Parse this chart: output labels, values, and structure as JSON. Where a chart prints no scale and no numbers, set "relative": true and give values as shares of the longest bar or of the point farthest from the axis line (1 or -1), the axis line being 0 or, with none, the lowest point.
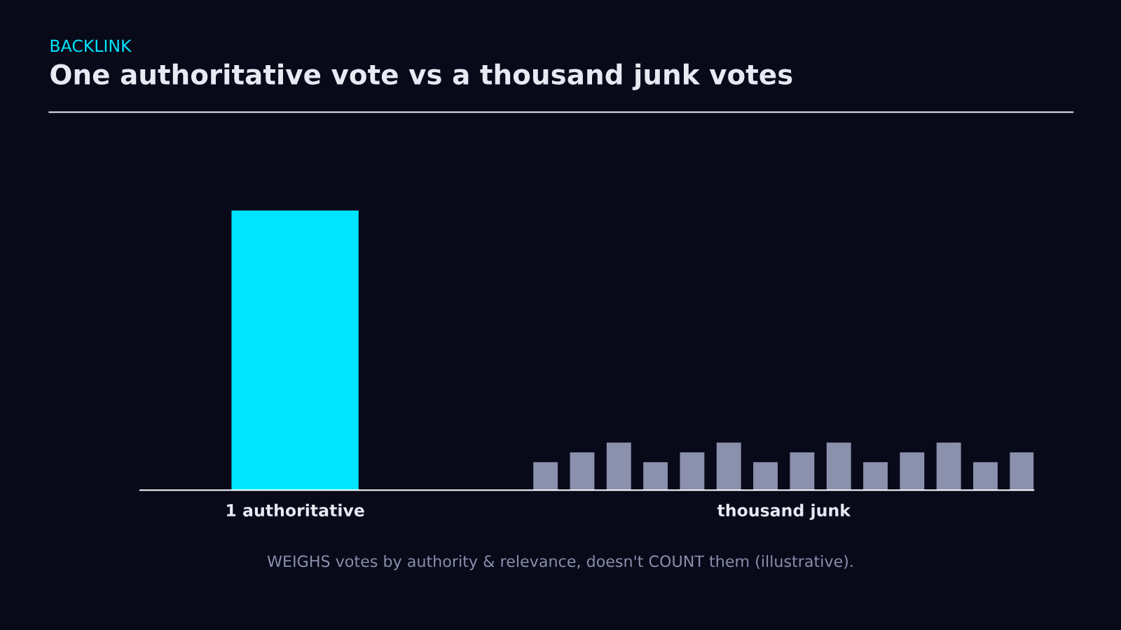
{
  "chart_data": {
    "type": "bar",
    "subtitle": "BACKLINK",
    "title": "One authoritative vote vs a thousand junk votes",
    "relative": true,
    "categories": [
      "1 authoritative",
      "thousand junk"
    ],
    "series": [
      {
        "color": "#00e5ff",
        "values": [
          1,
          null
        ]
      },
      {
        "color": "#8b90ad",
        "values": [
          null,
          0.1
        ]
      },
      {
        "color": "#8b90ad",
        "values": [
          null,
          0.135
        ]
      },
      {
        "color": "#8b90ad",
        "values": [
          null,
          0.17
        ]
      },
      {
        "color": "#8b90ad",
        "values": [
          null,
          0.1
        ]
      },
      {
        "color": "#8b90ad",
        "values": [
          null,
          0.135
        ]
      },
      {
        "color": "#8b90ad",
        "values": [
          null,
          0.17
        ]
      },
      {
        "color": "#8b90ad",
        "values": [
          null,
          0.1
        ]
      },
      {
        "color": "#8b90ad",
        "values": [
          null,
          0.135
        ]
      },
      {
        "color": "#8b90ad",
        "values": [
          null,
          0.17
        ]
      },
      {
        "color": "#8b90ad",
        "values": [
          null,
          0.1
        ]
      },
      {
        "color": "#8b90ad",
        "values": [
          null,
          0.135
        ]
      },
      {
        "color": "#8b90ad",
        "values": [
          null,
          0.17
        ]
      },
      {
        "color": "#8b90ad",
        "values": [
          null,
          0.1
        ]
      },
      {
        "color": "#8b90ad",
        "values": [
          null,
          0.135
        ]
      }
    ],
    "annotations": [
      "WEIGHS votes by authority & relevance, doesn't COUNT them (illustrative)."
    ],
    "grid": false,
    "legend": false
  }
}
